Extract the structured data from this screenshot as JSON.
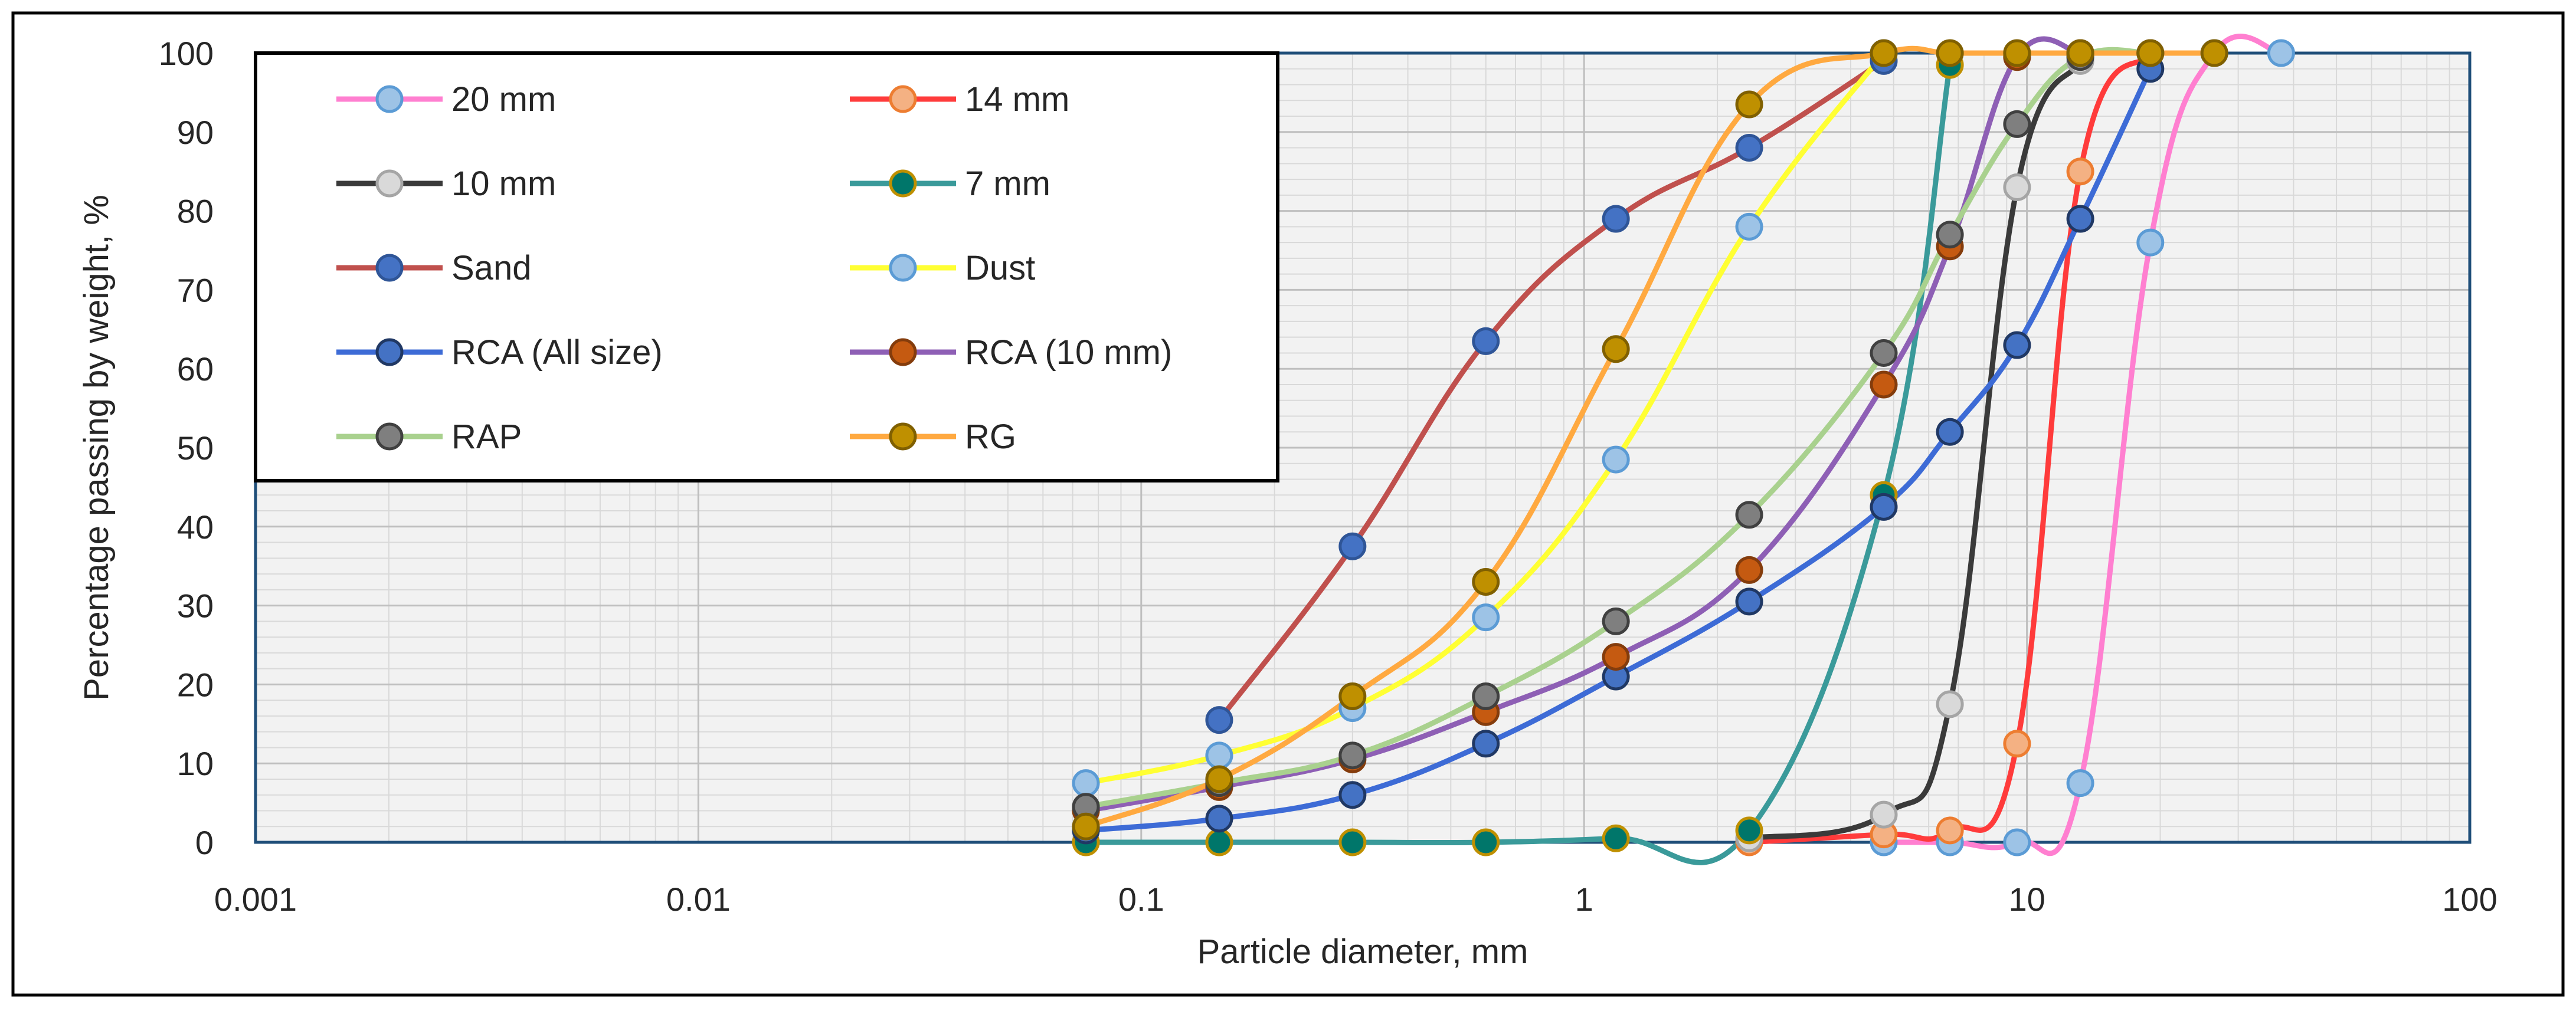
{
  "chart_data": {
    "type": "line",
    "title": "",
    "xlabel": "Particle diameter, mm",
    "ylabel": "Percentage passing by weight, %",
    "x_scale": "log",
    "xlim": [
      0.001,
      100
    ],
    "ylim": [
      0,
      100
    ],
    "x_ticks": [
      "0.001",
      "0.01",
      "0.1",
      "1",
      "10",
      "100"
    ],
    "y_ticks": [
      "0",
      "10",
      "20",
      "30",
      "40",
      "50",
      "60",
      "70",
      "80",
      "90",
      "100"
    ],
    "grid": "major and minor, both axes",
    "legend_position": "top-left",
    "series": [
      {
        "name": "20 mm",
        "line_color": "#FF7FD0",
        "marker_fill": "#9DC3E6",
        "marker_edge": "#5B9BD5",
        "x": [
          4.75,
          6.7,
          9.5,
          13.2,
          19,
          26.5,
          37.5
        ],
        "y": [
          0,
          0,
          0,
          7.5,
          76,
          100,
          100
        ]
      },
      {
        "name": "14 mm",
        "line_color": "#FF3B3B",
        "marker_fill": "#F4B183",
        "marker_edge": "#ED7D31",
        "x": [
          2.36,
          4.75,
          6.7,
          9.5,
          13.2,
          19
        ],
        "y": [
          0,
          1,
          1.5,
          12.5,
          85,
          100
        ]
      },
      {
        "name": "10 mm",
        "line_color": "#3A3A3A",
        "marker_fill": "#D9D9D9",
        "marker_edge": "#A5A5A5",
        "x": [
          2.36,
          4.75,
          6.7,
          9.5,
          13.2
        ],
        "y": [
          0.5,
          3.5,
          17.5,
          83,
          99
        ]
      },
      {
        "name": "7 mm",
        "line_color": "#3A9A9A",
        "marker_fill": "#00766A",
        "marker_edge": "#BF9000",
        "x": [
          0.075,
          0.15,
          0.3,
          0.6,
          1.18,
          2.36,
          4.75,
          6.7
        ],
        "y": [
          0,
          0,
          0,
          0,
          0.5,
          1.5,
          44,
          98.5
        ]
      },
      {
        "name": "Sand",
        "line_color": "#C0504D",
        "marker_fill": "#4472C4",
        "marker_edge": "#2F5597",
        "x": [
          0.15,
          0.3,
          0.6,
          1.18,
          2.36,
          4.75
        ],
        "y": [
          15.5,
          37.5,
          63.5,
          79,
          88,
          99
        ]
      },
      {
        "name": "Dust",
        "line_color": "#FFFF33",
        "marker_fill": "#9DC3E6",
        "marker_edge": "#5B9BD5",
        "x": [
          0.075,
          0.15,
          0.3,
          0.6,
          1.18,
          2.36,
          4.75
        ],
        "y": [
          7.5,
          11,
          17,
          28.5,
          48.5,
          78,
          100
        ]
      },
      {
        "name": "RCA (All size)",
        "line_color": "#3D6BD6",
        "marker_fill": "#4472C4",
        "marker_edge": "#203864",
        "x": [
          0.075,
          0.15,
          0.3,
          0.6,
          1.18,
          2.36,
          4.75,
          6.7,
          9.5,
          13.2,
          19
        ],
        "y": [
          1.5,
          3,
          6,
          12.5,
          21,
          30.5,
          42.5,
          52,
          63,
          79,
          98
        ]
      },
      {
        "name": "RCA (10 mm)",
        "line_color": "#8E5FB5",
        "marker_fill": "#C55A11",
        "marker_edge": "#843C0C",
        "x": [
          0.075,
          0.15,
          0.3,
          0.6,
          1.18,
          2.36,
          4.75,
          6.7,
          9.5,
          13.2
        ],
        "y": [
          4,
          7,
          10.5,
          16.5,
          23.5,
          34.5,
          58,
          75.5,
          99.5,
          100
        ]
      },
      {
        "name": "RAP",
        "line_color": "#A9D18E",
        "marker_fill": "#7F7F7F",
        "marker_edge": "#404040",
        "x": [
          0.075,
          0.15,
          0.3,
          0.6,
          1.18,
          2.36,
          4.75,
          6.7,
          9.5,
          13.2,
          19
        ],
        "y": [
          4.5,
          7.5,
          11,
          18.5,
          28,
          41.5,
          62,
          77,
          91,
          99.5,
          100
        ]
      },
      {
        "name": "RG",
        "line_color": "#FFA940",
        "marker_fill": "#BF9000",
        "marker_edge": "#806000",
        "x": [
          0.075,
          0.15,
          0.3,
          0.6,
          1.18,
          2.36,
          4.75,
          6.7,
          9.5,
          13.2,
          19,
          26.5
        ],
        "y": [
          2,
          8,
          18.5,
          33,
          62.5,
          93.5,
          100,
          100,
          100,
          100,
          100,
          100
        ]
      }
    ]
  }
}
